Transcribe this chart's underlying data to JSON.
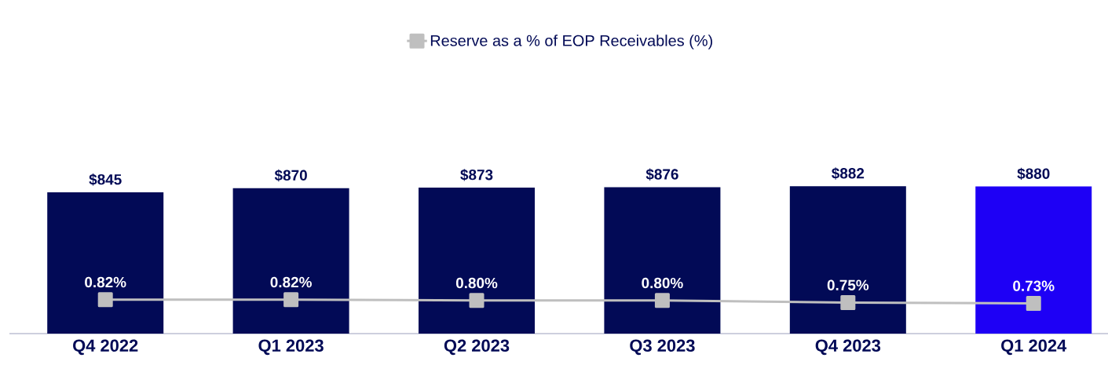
{
  "chart_data": {
    "type": "bar",
    "categories": [
      "Q4 2022",
      "Q1 2023",
      "Q2 2023",
      "Q3 2023",
      "Q4 2023",
      "Q1 2024"
    ],
    "series": [
      {
        "colors": [
          "#020a56",
          "#020a56",
          "#020a56",
          "#020a56",
          "#020a56",
          "#1e00f5"
        ],
        "values": [
          845,
          870,
          873,
          876,
          882,
          880
        ],
        "value_labels": [
          "$845",
          "$870",
          "$873",
          "$876",
          "$882",
          "$880"
        ]
      },
      {
        "type": "line",
        "axis": "y2",
        "name": "Reserve as a % of EOP Receivables (%)",
        "color": "#bfbfbf",
        "values": [
          0.82,
          0.82,
          0.8,
          0.8,
          0.75,
          0.73
        ],
        "value_labels": [
          "0.82%",
          "0.82%",
          "0.80%",
          "0.80%",
          "0.75%",
          "0.73%"
        ]
      }
    ],
    "marker": "square",
    "line_style": "solid",
    "legend": "top",
    "tick_labels": "x",
    "grid": false
  }
}
